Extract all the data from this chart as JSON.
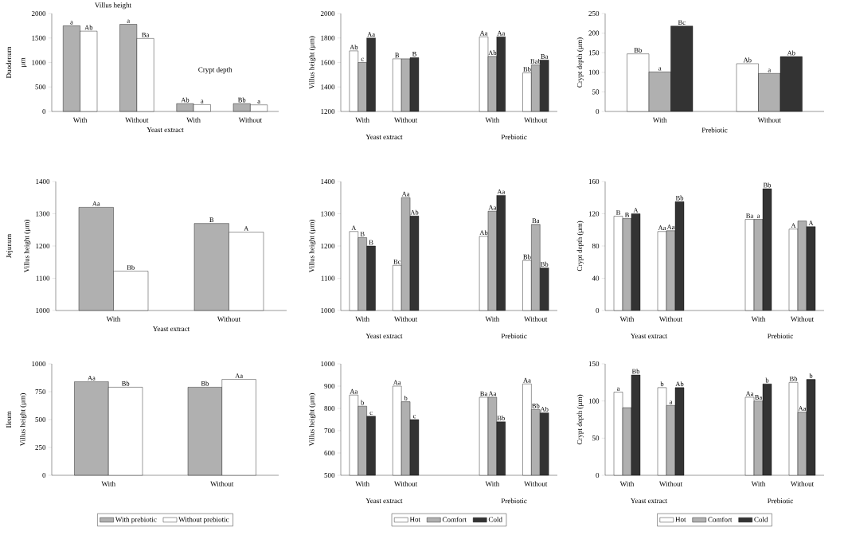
{
  "chart_data": [
    {
      "type": "bar",
      "categories": [
        "With",
        "Without",
        "With",
        "Without"
      ],
      "ylabel": "µm",
      "xlabel": "Yeast extract",
      "ylim": [
        0,
        2000
      ],
      "yticks": [
        0,
        500,
        1000,
        1500,
        2000
      ],
      "legend": false,
      "annotations": [
        "Villus height",
        "Crypt depth",
        "Duodenum"
      ],
      "series": [
        {
          "color": "#b0b0b0",
          "values": [
            1750,
            1780,
            160,
            160
          ],
          "value_labels": [
            "a",
            "a",
            "Ab",
            "Bb"
          ]
        },
        {
          "color": "#ffffff",
          "values": [
            1640,
            1490,
            140,
            135
          ],
          "value_labels": [
            "Ab",
            "Ba",
            "a",
            "a"
          ]
        }
      ]
    },
    {
      "type": "bar",
      "categories": [
        "With",
        "Without",
        null,
        "With",
        "Without"
      ],
      "ylabel": "Villus height (µm)",
      "ylim": [
        1200,
        2000
      ],
      "yticks": [
        1200,
        1400,
        1600,
        1800,
        2000
      ],
      "legend": false,
      "annotations": [
        "Yeast extract",
        "Prebiotic"
      ],
      "series": [
        {
          "color": "#ffffff",
          "values": [
            1695,
            1630,
            null,
            1810,
            1515
          ],
          "value_labels": [
            "Ab",
            "B",
            null,
            "Aa",
            "Bb"
          ]
        },
        {
          "color": "#b0b0b0",
          "values": [
            1600,
            1630,
            null,
            1650,
            1580
          ],
          "value_labels": [
            "c",
            null,
            null,
            "Ab",
            "Bab"
          ]
        },
        {
          "color": "#333333",
          "values": [
            1800,
            1640,
            null,
            1810,
            1620
          ],
          "value_labels": [
            "Aa",
            "B",
            null,
            "Aa",
            "Ba"
          ]
        }
      ]
    },
    {
      "type": "bar",
      "categories": [
        "With",
        "Without"
      ],
      "ylabel": "Crypt depth (µm)",
      "xlabel": "Prebiotic",
      "ylim": [
        0,
        250
      ],
      "yticks": [
        0,
        50,
        100,
        150,
        200,
        250
      ],
      "legend": false,
      "series": [
        {
          "color": "#ffffff",
          "values": [
            147,
            122
          ],
          "value_labels": [
            "Bb",
            "Ab"
          ]
        },
        {
          "color": "#b0b0b0",
          "values": [
            101,
            97
          ],
          "value_labels": [
            "a",
            "a"
          ]
        },
        {
          "color": "#333333",
          "values": [
            218,
            140
          ],
          "value_labels": [
            "Bc",
            "Ab"
          ]
        }
      ]
    },
    {
      "type": "bar",
      "categories": [
        "With",
        "Without"
      ],
      "ylabel": "Villus height (µm)",
      "xlabel": "Yeast extract",
      "ylim": [
        1000,
        1400
      ],
      "yticks": [
        1000,
        1100,
        1200,
        1300,
        1400
      ],
      "legend": false,
      "annotations": [
        "Jejunum"
      ],
      "series": [
        {
          "color": "#b0b0b0",
          "values": [
            1320,
            1270
          ],
          "value_labels": [
            "Aa",
            "B"
          ]
        },
        {
          "color": "#ffffff",
          "values": [
            1122,
            1243
          ],
          "value_labels": [
            "Bb",
            "A"
          ]
        }
      ]
    },
    {
      "type": "bar",
      "categories": [
        "With",
        "Without",
        null,
        "With",
        "Without"
      ],
      "ylabel": "Villus height (µm)",
      "ylim": [
        1000,
        1400
      ],
      "yticks": [
        1000,
        1100,
        1200,
        1300,
        1400
      ],
      "legend": false,
      "annotations": [
        "Yeast extract",
        "Prebiotic"
      ],
      "series": [
        {
          "color": "#ffffff",
          "values": [
            1245,
            1140,
            null,
            1230,
            1155
          ],
          "value_labels": [
            "A",
            "Bc",
            null,
            "Ab",
            "Bb"
          ]
        },
        {
          "color": "#b0b0b0",
          "values": [
            1226,
            1350,
            null,
            1308,
            1267
          ],
          "value_labels": [
            "B",
            "Aa",
            null,
            "Aa",
            "Ba"
          ]
        },
        {
          "color": "#333333",
          "values": [
            1200,
            1293,
            null,
            1357,
            1132
          ],
          "value_labels": [
            "B",
            "Ab",
            null,
            "Aa",
            "Bb"
          ]
        }
      ]
    },
    {
      "type": "bar",
      "categories": [
        "With",
        "Without",
        null,
        "With",
        "Without"
      ],
      "ylabel": "Crypt depth (µm)",
      "ylim": [
        0,
        160
      ],
      "yticks": [
        0,
        40,
        80,
        120,
        160
      ],
      "legend": false,
      "annotations": [
        "Yeast extract",
        "Prebiotic"
      ],
      "series": [
        {
          "color": "#ffffff",
          "values": [
            117,
            98,
            null,
            113,
            101
          ],
          "value_labels": [
            "B",
            "Aa",
            null,
            "Ba",
            "A"
          ]
        },
        {
          "color": "#b0b0b0",
          "values": [
            114,
            99,
            null,
            113,
            111
          ],
          "value_labels": [
            "B",
            "Aa",
            null,
            "a",
            null
          ]
        },
        {
          "color": "#333333",
          "values": [
            120,
            135,
            null,
            151,
            104
          ],
          "value_labels": [
            "A",
            "Bb",
            null,
            "Bb",
            "A"
          ]
        }
      ]
    },
    {
      "type": "bar",
      "categories": [
        "With",
        "Without"
      ],
      "ylabel": "Villus height (µm)",
      "ylim": [
        0,
        1000
      ],
      "yticks": [
        0,
        250,
        500,
        750,
        1000
      ],
      "legend": "bottom",
      "annotations": [
        "Ileum"
      ],
      "series": [
        {
          "name": "With prebiotic",
          "color": "#b0b0b0",
          "values": [
            840,
            790
          ],
          "value_labels": [
            "Aa",
            "Bb"
          ]
        },
        {
          "name": "Without prebiotic",
          "color": "#ffffff",
          "values": [
            790,
            860
          ],
          "value_labels": [
            "Bb",
            "Aa"
          ]
        }
      ]
    },
    {
      "type": "bar",
      "categories": [
        "With",
        "Without",
        null,
        "With",
        "Without"
      ],
      "ylabel": "Villus height (µm)",
      "ylim": [
        500,
        1000
      ],
      "yticks": [
        500,
        600,
        700,
        800,
        900,
        1000
      ],
      "legend": "bottom",
      "annotations": [
        "Yeast extract",
        "Prebiotic"
      ],
      "series": [
        {
          "name": "Hot",
          "color": "#ffffff",
          "values": [
            860,
            900,
            null,
            850,
            910
          ],
          "value_labels": [
            "Aa",
            "Aa",
            null,
            "Ba",
            "Aa"
          ]
        },
        {
          "name": "Comfort",
          "color": "#b0b0b0",
          "values": [
            810,
            830,
            null,
            850,
            795
          ],
          "value_labels": [
            "b",
            "b",
            null,
            "Aa",
            "Bb"
          ]
        },
        {
          "name": "Cold",
          "color": "#333333",
          "values": [
            765,
            750,
            null,
            740,
            780
          ],
          "value_labels": [
            "c",
            "c",
            null,
            "Bb",
            "Ab"
          ]
        }
      ]
    },
    {
      "type": "bar",
      "categories": [
        "With",
        "Without",
        null,
        "With",
        "Without"
      ],
      "ylabel": "Crypt depth (µm)",
      "ylim": [
        0,
        150
      ],
      "yticks": [
        0,
        50,
        100,
        150
      ],
      "legend": "bottom",
      "annotations": [
        "Yeast extract",
        "Prebiotic"
      ],
      "series": [
        {
          "name": "Hot",
          "color": "#ffffff",
          "values": [
            112,
            118,
            null,
            105,
            125
          ],
          "value_labels": [
            "a",
            "b",
            null,
            "Aa",
            "Bb"
          ]
        },
        {
          "name": "Comfort",
          "color": "#b0b0b0",
          "values": [
            91,
            94,
            null,
            100,
            85
          ],
          "value_labels": [
            null,
            "a",
            null,
            "Ba",
            "Aa"
          ]
        },
        {
          "name": "Cold",
          "color": "#333333",
          "values": [
            135,
            118,
            null,
            123,
            129
          ],
          "value_labels": [
            "Bb",
            "Ab",
            null,
            "b",
            "b"
          ]
        }
      ]
    }
  ]
}
